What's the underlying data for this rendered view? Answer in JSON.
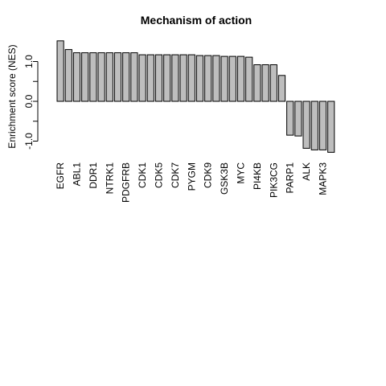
{
  "chart_data": {
    "type": "bar",
    "title": "Mechanism of action",
    "xlabel": "",
    "ylabel": "Enrichment score  (NES)",
    "ylim": [
      -1.3,
      1.5
    ],
    "yticks": [
      {
        "value": -1.0,
        "label": "-1.0"
      },
      {
        "value": 0.0,
        "label": "0.0"
      },
      {
        "value": 1.0,
        "label": "1.0"
      }
    ],
    "categories": [
      "EGFR",
      "",
      "ABL1",
      "",
      "DDR1",
      "",
      "NTRK1",
      "",
      "PDGFRB",
      "",
      "CDK1",
      "",
      "CDK5",
      "",
      "CDK7",
      "",
      "PYGM",
      "",
      "CDK9",
      "",
      "GSK3B",
      "",
      "MYC",
      "",
      "PI4KB",
      "",
      "PIK3CG",
      "",
      "PARP1",
      "",
      "ALK",
      "",
      "MAPK3",
      ""
    ],
    "values": [
      1.52,
      1.3,
      1.22,
      1.22,
      1.22,
      1.22,
      1.22,
      1.22,
      1.22,
      1.22,
      1.17,
      1.17,
      1.17,
      1.17,
      1.17,
      1.17,
      1.17,
      1.15,
      1.15,
      1.15,
      1.13,
      1.13,
      1.13,
      1.11,
      0.92,
      0.92,
      0.92,
      0.65,
      -0.85,
      -0.87,
      -1.18,
      -1.22,
      -1.22,
      -1.28
    ]
  }
}
